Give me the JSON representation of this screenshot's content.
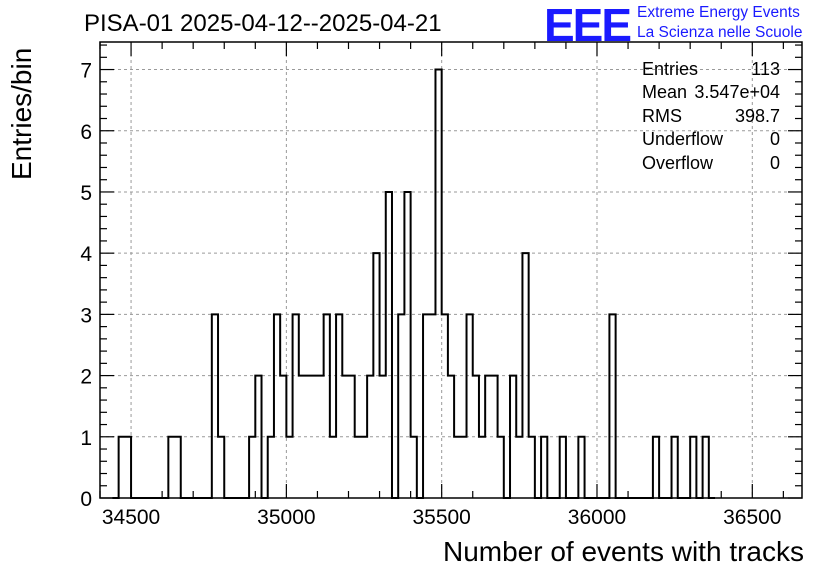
{
  "chart_data": {
    "type": "histogram",
    "title": "PISA-01 2025-04-12--2025-04-21",
    "xlabel": "Number of events with tracks",
    "ylabel": "Entries/bin",
    "xlim": [
      34400,
      36660
    ],
    "ylim": [
      0,
      7.45
    ],
    "bin_width": 20,
    "x_ticks": [
      34500,
      35000,
      35500,
      36000,
      36500
    ],
    "y_ticks": [
      0,
      1,
      2,
      3,
      4,
      5,
      6,
      7
    ],
    "grid": true,
    "bins": [
      {
        "x0": 34440,
        "v": 0
      },
      {
        "x0": 34460,
        "v": 1
      },
      {
        "x0": 34480,
        "v": 1
      },
      {
        "x0": 34500,
        "v": 0
      },
      {
        "x0": 34520,
        "v": 0
      },
      {
        "x0": 34540,
        "v": 0
      },
      {
        "x0": 34560,
        "v": 0
      },
      {
        "x0": 34580,
        "v": 0
      },
      {
        "x0": 34600,
        "v": 0
      },
      {
        "x0": 34620,
        "v": 1
      },
      {
        "x0": 34640,
        "v": 1
      },
      {
        "x0": 34660,
        "v": 0
      },
      {
        "x0": 34680,
        "v": 0
      },
      {
        "x0": 34700,
        "v": 0
      },
      {
        "x0": 34720,
        "v": 0
      },
      {
        "x0": 34740,
        "v": 0
      },
      {
        "x0": 34760,
        "v": 3
      },
      {
        "x0": 34780,
        "v": 1
      },
      {
        "x0": 34800,
        "v": 0
      },
      {
        "x0": 34820,
        "v": 0
      },
      {
        "x0": 34840,
        "v": 0
      },
      {
        "x0": 34860,
        "v": 0
      },
      {
        "x0": 34880,
        "v": 1
      },
      {
        "x0": 34900,
        "v": 2
      },
      {
        "x0": 34920,
        "v": 0
      },
      {
        "x0": 34940,
        "v": 1
      },
      {
        "x0": 34960,
        "v": 3
      },
      {
        "x0": 34980,
        "v": 2
      },
      {
        "x0": 35000,
        "v": 1
      },
      {
        "x0": 35020,
        "v": 3
      },
      {
        "x0": 35040,
        "v": 2
      },
      {
        "x0": 35060,
        "v": 2
      },
      {
        "x0": 35080,
        "v": 2
      },
      {
        "x0": 35100,
        "v": 2
      },
      {
        "x0": 35120,
        "v": 3
      },
      {
        "x0": 35140,
        "v": 1
      },
      {
        "x0": 35160,
        "v": 3
      },
      {
        "x0": 35180,
        "v": 2
      },
      {
        "x0": 35200,
        "v": 2
      },
      {
        "x0": 35220,
        "v": 1
      },
      {
        "x0": 35240,
        "v": 1
      },
      {
        "x0": 35260,
        "v": 2
      },
      {
        "x0": 35280,
        "v": 4
      },
      {
        "x0": 35300,
        "v": 2
      },
      {
        "x0": 35320,
        "v": 5
      },
      {
        "x0": 35340,
        "v": 0
      },
      {
        "x0": 35360,
        "v": 3
      },
      {
        "x0": 35380,
        "v": 5
      },
      {
        "x0": 35400,
        "v": 1
      },
      {
        "x0": 35420,
        "v": 0
      },
      {
        "x0": 35440,
        "v": 3
      },
      {
        "x0": 35460,
        "v": 3
      },
      {
        "x0": 35480,
        "v": 7
      },
      {
        "x0": 35500,
        "v": 3
      },
      {
        "x0": 35520,
        "v": 2
      },
      {
        "x0": 35540,
        "v": 1
      },
      {
        "x0": 35560,
        "v": 1
      },
      {
        "x0": 35580,
        "v": 3
      },
      {
        "x0": 35600,
        "v": 2
      },
      {
        "x0": 35620,
        "v": 1
      },
      {
        "x0": 35640,
        "v": 2
      },
      {
        "x0": 35660,
        "v": 2
      },
      {
        "x0": 35680,
        "v": 1
      },
      {
        "x0": 35700,
        "v": 0
      },
      {
        "x0": 35720,
        "v": 2
      },
      {
        "x0": 35740,
        "v": 1
      },
      {
        "x0": 35760,
        "v": 4
      },
      {
        "x0": 35780,
        "v": 1
      },
      {
        "x0": 35800,
        "v": 0
      },
      {
        "x0": 35820,
        "v": 1
      },
      {
        "x0": 35840,
        "v": 0
      },
      {
        "x0": 35860,
        "v": 0
      },
      {
        "x0": 35880,
        "v": 1
      },
      {
        "x0": 35900,
        "v": 0
      },
      {
        "x0": 35920,
        "v": 0
      },
      {
        "x0": 35940,
        "v": 1
      },
      {
        "x0": 35960,
        "v": 0
      },
      {
        "x0": 35980,
        "v": 0
      },
      {
        "x0": 36000,
        "v": 0
      },
      {
        "x0": 36020,
        "v": 0
      },
      {
        "x0": 36040,
        "v": 3
      },
      {
        "x0": 36060,
        "v": 0
      },
      {
        "x0": 36080,
        "v": 0
      },
      {
        "x0": 36100,
        "v": 0
      },
      {
        "x0": 36120,
        "v": 0
      },
      {
        "x0": 36140,
        "v": 0
      },
      {
        "x0": 36160,
        "v": 0
      },
      {
        "x0": 36180,
        "v": 1
      },
      {
        "x0": 36200,
        "v": 0
      },
      {
        "x0": 36220,
        "v": 0
      },
      {
        "x0": 36240,
        "v": 1
      },
      {
        "x0": 36260,
        "v": 0
      },
      {
        "x0": 36280,
        "v": 0
      },
      {
        "x0": 36300,
        "v": 1
      },
      {
        "x0": 36320,
        "v": 0
      },
      {
        "x0": 36340,
        "v": 1
      },
      {
        "x0": 36360,
        "v": 0
      }
    ],
    "stats": [
      {
        "key": "Entries",
        "value": "113"
      },
      {
        "key": "Mean",
        "value": "3.547e+04"
      },
      {
        "key": "RMS",
        "value": "398.7"
      },
      {
        "key": "Underflow",
        "value": "0"
      },
      {
        "key": "Overflow",
        "value": "0"
      }
    ]
  },
  "logo": {
    "mark": "EEE",
    "line1": "Extreme Energy Events",
    "line2": "La Scienza nelle Scuole"
  },
  "colors": {
    "logo": "#1a1aff",
    "line": "#000000",
    "grid": "#9a9a9a"
  }
}
